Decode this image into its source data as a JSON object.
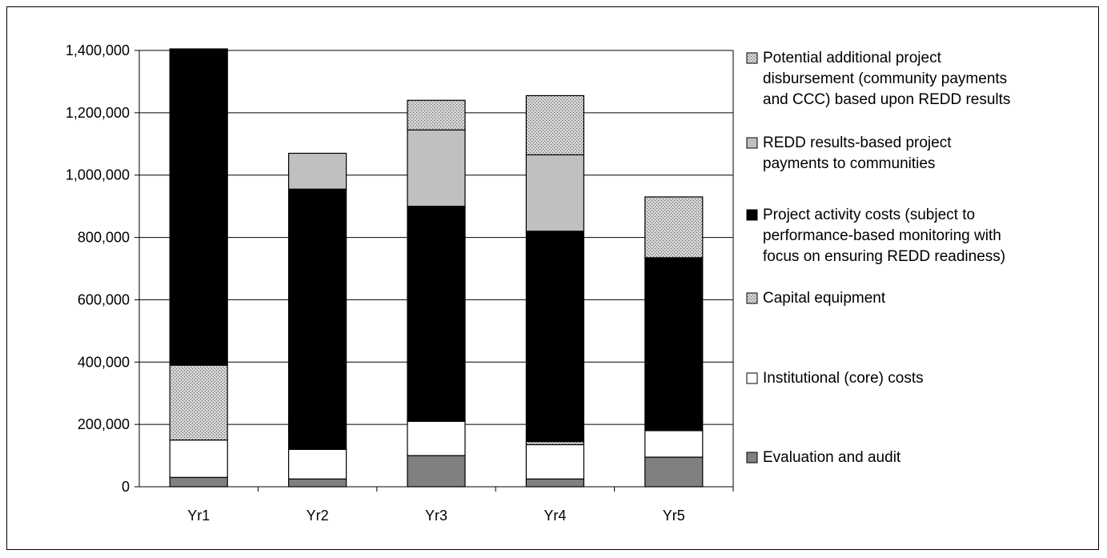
{
  "chart_data": {
    "type": "bar",
    "stacked": true,
    "categories": [
      "Yr1",
      "Yr2",
      "Yr3",
      "Yr4",
      "Yr5"
    ],
    "ylim": [
      0,
      1400000
    ],
    "yticks": [
      0,
      200000,
      400000,
      600000,
      800000,
      1000000,
      1200000,
      1400000
    ],
    "ytick_labels": [
      "0",
      "200,000",
      "400,000",
      "600,000",
      "800,000",
      "1,000,000",
      "1,200,000",
      "1,400,000"
    ],
    "grid": true,
    "legend_position": "right",
    "series": [
      {
        "key": "eval",
        "name": "Evaluation and audit",
        "fill": "#808080",
        "pattern": "none",
        "values": [
          30000,
          25000,
          100000,
          25000,
          95000
        ]
      },
      {
        "key": "inst",
        "name": "Institutional (core) costs",
        "fill": "#ffffff",
        "pattern": "none",
        "values": [
          120000,
          95000,
          110000,
          110000,
          85000
        ]
      },
      {
        "key": "cap",
        "name": "Capital equipment",
        "fill": "#c8c8c8",
        "pattern": "dots",
        "values": [
          240000,
          0,
          0,
          10000,
          0
        ]
      },
      {
        "key": "proj",
        "name": "Project activity costs (subject to performance-based monitoring with focus on ensuring REDD readiness)",
        "fill": "#000000",
        "pattern": "none",
        "values": [
          1015000,
          835000,
          690000,
          675000,
          555000
        ]
      },
      {
        "key": "redd",
        "name": "REDD results-based project payments to communities",
        "fill": "#c0c0c0",
        "pattern": "none",
        "values": [
          0,
          115000,
          245000,
          245000,
          0
        ]
      },
      {
        "key": "pot",
        "name": "Potential additional project disbursement (community payments and CCC) based upon REDD results",
        "fill": "#c8c8c8",
        "pattern": "dots",
        "values": [
          0,
          0,
          95000,
          190000,
          195000
        ]
      }
    ],
    "legend": [
      {
        "series": "pot",
        "lines": [
          "Potential additional project",
          "disbursement (community payments",
          "and CCC) based upon REDD results"
        ]
      },
      {
        "series": "redd",
        "lines": [
          "REDD results-based project",
          "payments to communities"
        ]
      },
      {
        "series": "proj",
        "lines": [
          "Project activity costs (subject to",
          "performance-based monitoring with",
          "focus on ensuring REDD readiness)"
        ]
      },
      {
        "series": "cap",
        "lines": [
          "Capital equipment"
        ]
      },
      {
        "series": "inst",
        "lines": [
          "Institutional (core) costs"
        ]
      },
      {
        "series": "eval",
        "lines": [
          "Evaluation and audit"
        ]
      }
    ]
  }
}
